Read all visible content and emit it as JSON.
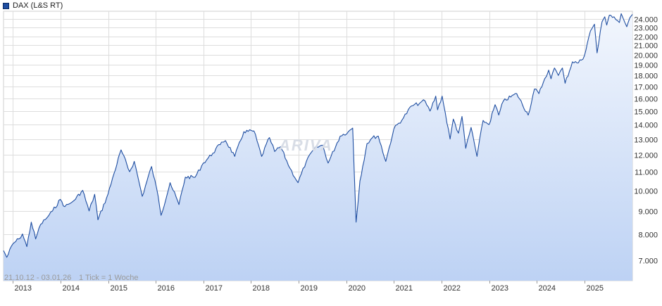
{
  "legend": {
    "label": "DAX (L&S RT)",
    "color": "#1f4ea1"
  },
  "footer": {
    "date_range": "21.10.12 - 03.01.26",
    "tick_info": "1 Tick = 1 Woche"
  },
  "watermark": "ARIVA",
  "chart_data": {
    "type": "area",
    "x_scale": "time",
    "y_scale": "log",
    "ylim": [
      6300,
      25000
    ],
    "xlim": [
      "2012-10-21",
      "2026-01-03"
    ],
    "y_ticks": [
      7000,
      8000,
      9000,
      10000,
      11000,
      12000,
      13000,
      14000,
      15000,
      16000,
      17000,
      18000,
      19000,
      20000,
      21000,
      22000,
      23000,
      24000
    ],
    "y_tick_labels": [
      "7.000",
      "8.000",
      "9.000",
      "10.000",
      "11.000",
      "12.000",
      "13.000",
      "14.000",
      "15.000",
      "16.000",
      "17.000",
      "18.000",
      "19.000",
      "20.000",
      "21.000",
      "22.000",
      "23.000",
      "24.000"
    ],
    "x_ticks": [
      "2013-01-01",
      "2014-01-01",
      "2015-01-01",
      "2016-01-01",
      "2017-01-01",
      "2018-01-01",
      "2019-01-01",
      "2020-01-01",
      "2021-01-01",
      "2022-01-01",
      "2023-01-01",
      "2024-01-01",
      "2025-01-01"
    ],
    "x_tick_labels": [
      "2013",
      "2014",
      "2015",
      "2016",
      "2017",
      "2018",
      "2019",
      "2020",
      "2021",
      "2022",
      "2023",
      "2024",
      "2025"
    ],
    "grid": true,
    "legend_position": "top-left",
    "colors": {
      "line": "#1f4ea1",
      "fill_top": "#f2f6fd",
      "fill_bottom": "#bdd2f4",
      "grid": "#dddddd"
    },
    "series": [
      {
        "name": "DAX (L&S RT)",
        "points": [
          [
            "2012-10-21",
            7350
          ],
          [
            "2012-11-15",
            7100
          ],
          [
            "2012-12-31",
            7600
          ],
          [
            "2013-02-15",
            7800
          ],
          [
            "2013-03-15",
            8000
          ],
          [
            "2013-04-18",
            7500
          ],
          [
            "2013-05-22",
            8500
          ],
          [
            "2013-06-24",
            7800
          ],
          [
            "2013-08-01",
            8400
          ],
          [
            "2013-09-20",
            8700
          ],
          [
            "2013-11-01",
            9000
          ],
          [
            "2013-12-31",
            9550
          ],
          [
            "2014-02-03",
            9200
          ],
          [
            "2014-03-15",
            9350
          ],
          [
            "2014-04-15",
            9500
          ],
          [
            "2014-06-20",
            10000
          ],
          [
            "2014-08-08",
            9000
          ],
          [
            "2014-09-20",
            9800
          ],
          [
            "2014-10-15",
            8600
          ],
          [
            "2014-12-31",
            9800
          ],
          [
            "2015-02-15",
            10900
          ],
          [
            "2015-04-10",
            12300
          ],
          [
            "2015-06-15",
            11000
          ],
          [
            "2015-07-20",
            11600
          ],
          [
            "2015-09-20",
            9700
          ],
          [
            "2015-11-30",
            11300
          ],
          [
            "2016-01-20",
            9700
          ],
          [
            "2016-02-11",
            8800
          ],
          [
            "2016-04-20",
            10400
          ],
          [
            "2016-06-27",
            9300
          ],
          [
            "2016-08-15",
            10700
          ],
          [
            "2016-10-30",
            10700
          ],
          [
            "2016-12-31",
            11500
          ],
          [
            "2017-03-15",
            12100
          ],
          [
            "2017-05-20",
            12800
          ],
          [
            "2017-06-19",
            12900
          ],
          [
            "2017-08-29",
            11900
          ],
          [
            "2017-11-07",
            13500
          ],
          [
            "2018-01-23",
            13550
          ],
          [
            "2018-03-23",
            11900
          ],
          [
            "2018-05-22",
            13100
          ],
          [
            "2018-07-01",
            12200
          ],
          [
            "2018-08-15",
            12500
          ],
          [
            "2018-10-26",
            11200
          ],
          [
            "2018-12-27",
            10400
          ],
          [
            "2019-03-01",
            11600
          ],
          [
            "2019-05-03",
            12400
          ],
          [
            "2019-07-04",
            12600
          ],
          [
            "2019-08-15",
            11500
          ],
          [
            "2019-11-15",
            13200
          ],
          [
            "2020-01-17",
            13500
          ],
          [
            "2020-02-19",
            13750
          ],
          [
            "2020-03-16",
            8500
          ],
          [
            "2020-04-15",
            10500
          ],
          [
            "2020-06-08",
            12700
          ],
          [
            "2020-07-20",
            13100
          ],
          [
            "2020-09-02",
            13200
          ],
          [
            "2020-10-30",
            11600
          ],
          [
            "2020-12-31",
            13700
          ],
          [
            "2021-03-15",
            14500
          ],
          [
            "2021-05-15",
            15400
          ],
          [
            "2021-07-15",
            15600
          ],
          [
            "2021-08-15",
            15900
          ],
          [
            "2021-10-04",
            15000
          ],
          [
            "2021-11-17",
            16200
          ],
          [
            "2021-12-01",
            15100
          ],
          [
            "2022-01-05",
            16200
          ],
          [
            "2022-03-07",
            13000
          ],
          [
            "2022-04-01",
            14400
          ],
          [
            "2022-05-10",
            13400
          ],
          [
            "2022-06-06",
            14600
          ],
          [
            "2022-07-05",
            12400
          ],
          [
            "2022-08-15",
            13800
          ],
          [
            "2022-09-29",
            11900
          ],
          [
            "2022-11-15",
            14300
          ],
          [
            "2022-12-31",
            14000
          ],
          [
            "2023-02-15",
            15500
          ],
          [
            "2023-03-15",
            14700
          ],
          [
            "2023-04-20",
            15800
          ],
          [
            "2023-07-31",
            16400
          ],
          [
            "2023-10-27",
            14700
          ],
          [
            "2023-12-14",
            16800
          ],
          [
            "2024-01-17",
            16400
          ],
          [
            "2024-03-01",
            17700
          ],
          [
            "2024-04-01",
            18500
          ],
          [
            "2024-04-19",
            17700
          ],
          [
            "2024-05-15",
            18700
          ],
          [
            "2024-06-14",
            18000
          ],
          [
            "2024-07-15",
            18700
          ],
          [
            "2024-08-05",
            17300
          ],
          [
            "2024-09-30",
            19300
          ],
          [
            "2024-11-15",
            19200
          ],
          [
            "2024-12-31",
            19900
          ],
          [
            "2025-02-15",
            22600
          ],
          [
            "2025-03-18",
            23400
          ],
          [
            "2025-04-07",
            20200
          ],
          [
            "2025-05-15",
            23700
          ],
          [
            "2025-06-05",
            24300
          ],
          [
            "2025-06-20",
            23300
          ],
          [
            "2025-07-10",
            24500
          ],
          [
            "2025-08-15",
            24300
          ],
          [
            "2025-09-25",
            23600
          ],
          [
            "2025-10-09",
            24700
          ],
          [
            "2025-11-21",
            23100
          ],
          [
            "2025-12-15",
            24200
          ],
          [
            "2026-01-03",
            24600
          ]
        ]
      }
    ]
  }
}
